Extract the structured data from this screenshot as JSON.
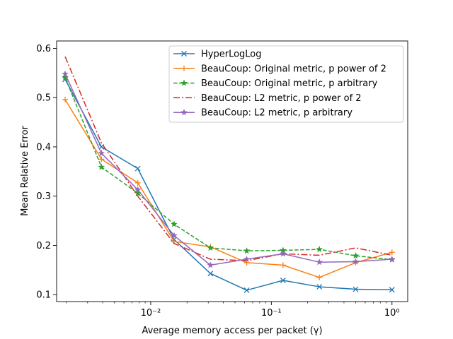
{
  "chart_data": {
    "type": "line",
    "title": "",
    "xlabel": "Average memory access per packet (γ)",
    "ylabel": "Mean Relative Error",
    "xscale": "log",
    "xlim": [
      0.00166,
      1.35
    ],
    "ylim": [
      0.086,
      0.615
    ],
    "grid": false,
    "legend_position": "top-right",
    "x": [
      0.001953,
      0.003906,
      0.007813,
      0.015625,
      0.03125,
      0.0625,
      0.125,
      0.25,
      0.5,
      1.0
    ],
    "x_ticks": [
      {
        "value": 0.01,
        "label": "10⁻²"
      },
      {
        "value": 0.1,
        "label": "10⁻¹"
      },
      {
        "value": 1,
        "label": "10⁰"
      }
    ],
    "y_ticks": [
      {
        "value": 0.1,
        "label": "0.1"
      },
      {
        "value": 0.2,
        "label": "0.2"
      },
      {
        "value": 0.3,
        "label": "0.3"
      },
      {
        "value": 0.4,
        "label": "0.4"
      },
      {
        "value": 0.5,
        "label": "0.5"
      },
      {
        "value": 0.6,
        "label": "0.6"
      }
    ],
    "series": [
      {
        "name": "HyperLogLog",
        "color": "#1f77b4",
        "dash": "solid",
        "marker": "x",
        "values": [
          0.537,
          0.4,
          0.356,
          0.212,
          0.143,
          0.109,
          0.129,
          0.116,
          0.111,
          0.11
        ]
      },
      {
        "name": "BeauCoup: Original metric, p power of 2",
        "color": "#ff7f0e",
        "dash": "solid",
        "marker": "plus",
        "values": [
          0.496,
          0.375,
          0.327,
          0.208,
          0.197,
          0.165,
          0.16,
          0.135,
          0.165,
          0.186
        ]
      },
      {
        "name": "BeauCoup: Original metric, p arbitrary",
        "color": "#2ca02c",
        "dash": "dashed",
        "marker": "star",
        "values": [
          0.541,
          0.359,
          0.306,
          0.243,
          0.195,
          0.189,
          0.19,
          0.192,
          0.179,
          0.171
        ]
      },
      {
        "name": "BeauCoup: L2 metric, p power of 2",
        "color": "#d62728",
        "dash": "dashdot",
        "marker": "none",
        "values": [
          0.583,
          0.408,
          0.3,
          0.204,
          0.172,
          0.169,
          0.183,
          0.18,
          0.195,
          0.18
        ]
      },
      {
        "name": "BeauCoup: L2 metric, p arbitrary",
        "color": "#9467bd",
        "dash": "solid",
        "marker": "star",
        "values": [
          0.548,
          0.387,
          0.313,
          0.22,
          0.16,
          0.172,
          0.183,
          0.166,
          0.167,
          0.172
        ]
      }
    ]
  }
}
